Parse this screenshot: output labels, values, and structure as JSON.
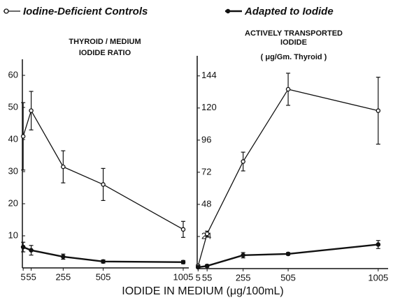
{
  "legend_note": null,
  "x_label": "IODIDE IN MEDIUM (μg/100mL)",
  "chart_data": [
    {
      "type": "line",
      "title": [
        "THYROID / MEDIUM",
        "IODIDE RATIO"
      ],
      "x": [
        5,
        55,
        255,
        505,
        1005
      ],
      "xlim": [
        0,
        1040
      ],
      "xticks": [
        5,
        55,
        255,
        505,
        1005
      ],
      "ylim": [
        0,
        65
      ],
      "yticks": [
        10,
        20,
        30,
        40,
        50,
        60
      ],
      "series": [
        {
          "name": "Iodine-Deficient Controls",
          "color": "#111111",
          "marker": "open",
          "values": [
            41,
            49,
            31.5,
            26,
            12
          ],
          "errors": [
            10.5,
            6,
            5,
            5,
            2.5
          ]
        },
        {
          "name": "Adapted to Iodide",
          "color": "#111111",
          "marker": "filled",
          "values": [
            6.5,
            5.5,
            3.5,
            2,
            1.8
          ],
          "errors": [
            1.5,
            1.5,
            0.8,
            0.5,
            0.5
          ]
        }
      ]
    },
    {
      "type": "line",
      "title": [
        "ACTIVELY TRANSPORTED",
        "IODIDE",
        "( μg/Gm. Thyroid )"
      ],
      "x": [
        5,
        55,
        255,
        505,
        1005
      ],
      "xlim": [
        0,
        1060
      ],
      "xticks": [
        5,
        55,
        255,
        505,
        1005
      ],
      "ylim": [
        0,
        159
      ],
      "yticks": [
        24,
        48,
        72,
        96,
        120,
        144
      ],
      "series": [
        {
          "color": "#111111",
          "marker": "open",
          "values": [
            2,
            26,
            80,
            134,
            118
          ],
          "errors": [
            1,
            2,
            7,
            12,
            25
          ]
        },
        {
          "color": "#111111",
          "marker": "filled",
          "values": [
            1,
            2,
            10,
            11,
            18
          ],
          "errors": [
            0.5,
            1,
            2,
            1,
            3
          ]
        }
      ]
    }
  ]
}
